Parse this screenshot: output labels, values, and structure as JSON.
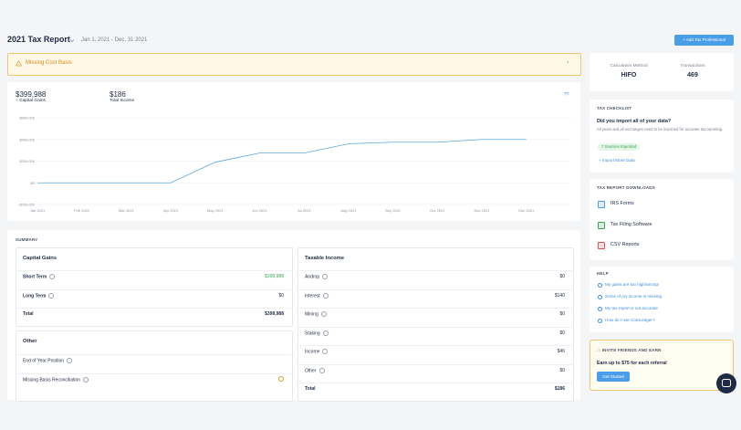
{
  "header": {
    "title": "2021 Tax Report",
    "date_range": "Jan 1, 2021 - Dec, 31 2021",
    "button": "+ Add Tax Professional"
  },
  "alert": "Missing Cost Basis",
  "overview": {
    "capital_gains": {
      "value": "$399,988",
      "label": "Capital Gains"
    },
    "total_income": {
      "value": "$186",
      "label": "Total Income"
    },
    "help_icon": "??"
  },
  "chart_data": {
    "type": "line",
    "categories": [
      "Jan 2021",
      "Feb 2021",
      "Mar 2021",
      "Apr 2021",
      "May 2021",
      "Jun 2021",
      "Jul 2021",
      "Aug 2021",
      "Sep 2021",
      "Oct 2021",
      "Nov 2021",
      "Dec 2021"
    ],
    "values": [
      0,
      0,
      0,
      0,
      190000,
      275000,
      275000,
      360000,
      375000,
      375000,
      400000,
      400000
    ],
    "color": "#5aa7e0",
    "ylim": [
      -200000,
      600000
    ],
    "yticks": [
      {
        "value": -200000,
        "label": "-$200,000"
      },
      {
        "value": 0,
        "label": "$0"
      },
      {
        "value": 200000,
        "label": "$200,000"
      },
      {
        "value": 400000,
        "label": "$400,000"
      },
      {
        "value": 600000,
        "label": "$600,000"
      }
    ],
    "grid": true
  },
  "summary": {
    "title": "SUMMARY",
    "capital_gains": {
      "title": "Capital Gains",
      "rows": [
        {
          "label": "Short Term",
          "value": "$399,988"
        },
        {
          "label": "Long Term",
          "value": "$0"
        },
        {
          "label": "Total",
          "value": "$399,988"
        }
      ]
    },
    "other": {
      "title": "Other",
      "rows": [
        {
          "label": "End of Year Position"
        },
        {
          "label": "Missing Basis Reconciliation"
        }
      ]
    },
    "taxable_income": {
      "title": "Taxable Income",
      "rows": [
        {
          "label": "Airdrop",
          "value": "$0"
        },
        {
          "label": "Interest",
          "value": "$140"
        },
        {
          "label": "Mining",
          "value": "$0"
        },
        {
          "label": "Staking",
          "value": "$0"
        },
        {
          "label": "Income",
          "value": "$46"
        },
        {
          "label": "Other",
          "value": "$0"
        },
        {
          "label": "Total",
          "value": "$186"
        }
      ]
    }
  },
  "sidebar": {
    "method": {
      "label": "Calculation Method",
      "value": "HIFO"
    },
    "transactions": {
      "label": "Transactions",
      "value": "469"
    },
    "checklist": {
      "title": "TAX CHECKLIST",
      "question": "Did you import all of your data?",
      "description": "All years and all exchanges need to be imported for accurate tax reporting.",
      "badge": "7 Sources Imported",
      "link": "+ Import More Data"
    },
    "downloads": {
      "title": "TAX REPORT DOWNLOADS",
      "items": [
        "IRS Forms",
        "Tax Filing Software",
        "CSV Reports"
      ]
    },
    "help": {
      "title": "HELP",
      "links": [
        "My gains are too high/wrong!",
        "Some of my income is missing",
        "My tax report is not accurate",
        "How do I use CoinLedger?"
      ]
    },
    "invite": {
      "title": "INVITE FRIENDS AND EARN",
      "text": "Earn up to $75 for each referral",
      "button": "Get Started"
    }
  }
}
